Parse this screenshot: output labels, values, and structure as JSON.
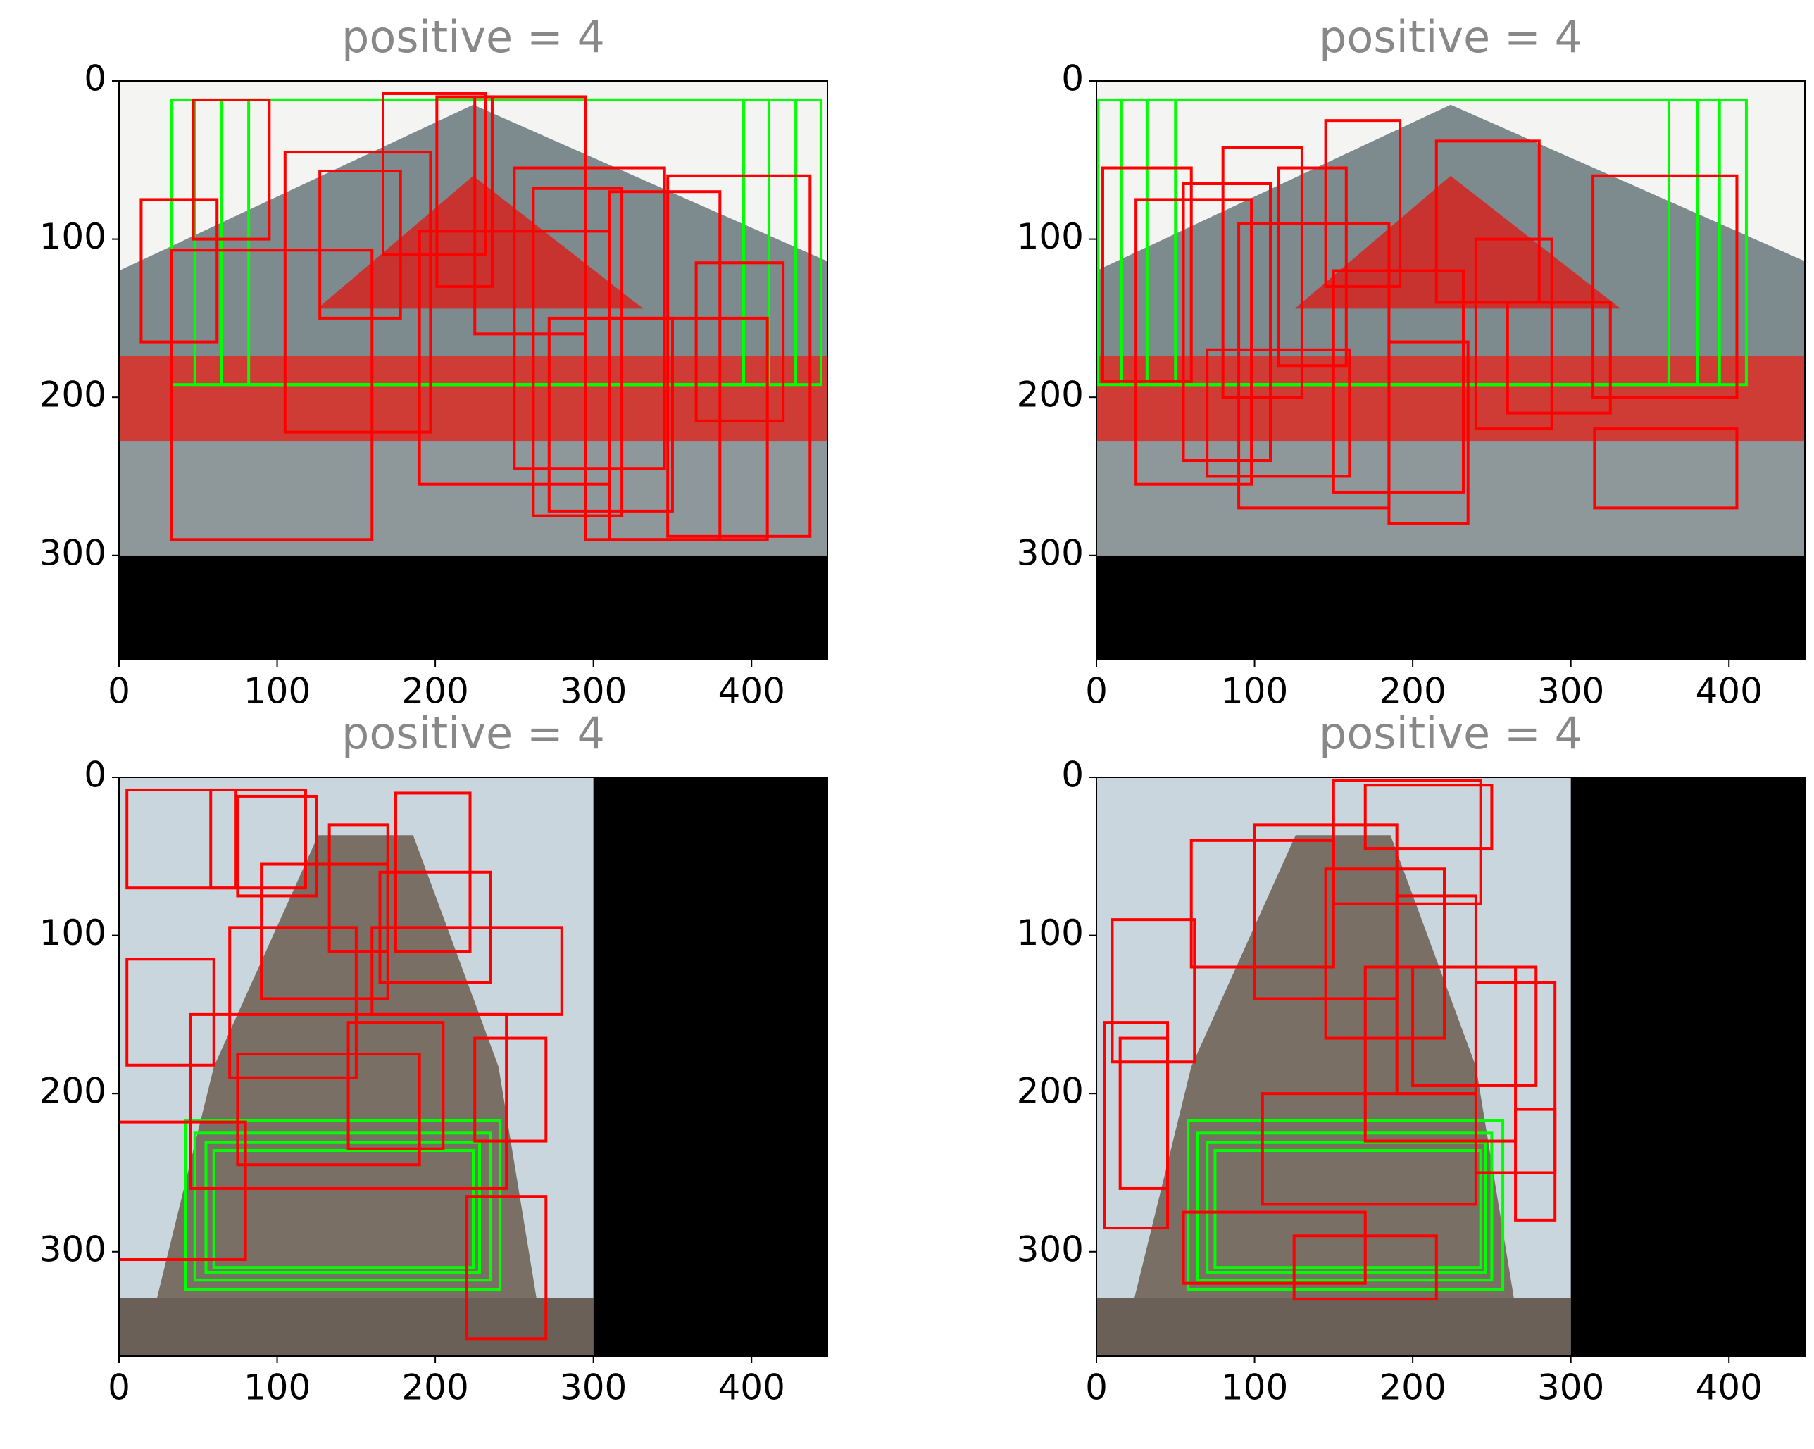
{
  "chart_data": [
    {
      "type": "image",
      "title": "positive = 4",
      "xlim": [
        0,
        448
      ],
      "ylim": [
        366,
        0
      ],
      "xticks": [
        0,
        100,
        200,
        300,
        400
      ],
      "yticks": [
        0,
        100,
        200,
        300
      ],
      "scene": "temple",
      "image_extent": [
        0,
        448,
        0,
        300
      ],
      "pad_color": "#000000",
      "series": [
        {
          "color": "#00ff00",
          "boxes": [
            [
              33,
              12,
              444,
              192
            ],
            [
              48,
              12,
              428,
              192
            ],
            [
              65,
              12,
              411,
              192
            ],
            [
              82,
              12,
              395,
              192
            ]
          ]
        },
        {
          "color": "#ff0000",
          "boxes": [
            [
              14,
              75,
              62,
              165
            ],
            [
              47,
              12,
              95,
              100
            ],
            [
              33,
              107,
              160,
              290
            ],
            [
              105,
              45,
              197,
              222
            ],
            [
              127,
              57,
              178,
              150
            ],
            [
              167,
              8,
              232,
              110
            ],
            [
              201,
              10,
              236,
              130
            ],
            [
              225,
              10,
              295,
              160
            ],
            [
              250,
              55,
              345,
              245
            ],
            [
              262,
              68,
              318,
              275
            ],
            [
              190,
              95,
              310,
              255
            ],
            [
              310,
              70,
              380,
              290
            ],
            [
              347,
              60,
              437,
              288
            ],
            [
              365,
              115,
              420,
              215
            ],
            [
              272,
              150,
              350,
              272
            ],
            [
              295,
              150,
              410,
              290
            ]
          ]
        }
      ]
    },
    {
      "type": "image",
      "title": "positive = 4",
      "xlim": [
        0,
        448
      ],
      "ylim": [
        366,
        0
      ],
      "xticks": [
        0,
        100,
        200,
        300,
        400
      ],
      "yticks": [
        0,
        100,
        200,
        300
      ],
      "scene": "temple",
      "image_extent": [
        0,
        448,
        0,
        300
      ],
      "pad_color": "#000000",
      "series": [
        {
          "color": "#00ff00",
          "boxes": [
            [
              1,
              12,
              411,
              192
            ],
            [
              16,
              12,
              394,
              192
            ],
            [
              32,
              12,
              380,
              192
            ],
            [
              50,
              12,
              362,
              192
            ]
          ]
        },
        {
          "color": "#ff0000",
          "boxes": [
            [
              4,
              55,
              60,
              190
            ],
            [
              25,
              75,
              98,
              255
            ],
            [
              55,
              65,
              110,
              240
            ],
            [
              80,
              42,
              130,
              200
            ],
            [
              90,
              90,
              185,
              270
            ],
            [
              115,
              55,
              158,
              180
            ],
            [
              145,
              25,
              192,
              130
            ],
            [
              150,
              120,
              232,
              260
            ],
            [
              185,
              165,
              235,
              280
            ],
            [
              215,
              38,
              280,
              140
            ],
            [
              240,
              100,
              288,
              220
            ],
            [
              260,
              140,
              325,
              210
            ],
            [
              314,
              60,
              405,
              200
            ],
            [
              315,
              220,
              405,
              270
            ],
            [
              70,
              170,
              160,
              250
            ]
          ]
        }
      ]
    },
    {
      "type": "image",
      "title": "positive = 4",
      "xlim": [
        0,
        448
      ],
      "ylim": [
        366,
        0
      ],
      "xticks": [
        0,
        100,
        200,
        300,
        400
      ],
      "yticks": [
        0,
        100,
        200,
        300
      ],
      "scene": "pagoda",
      "image_extent": [
        0,
        300,
        0,
        366
      ],
      "pad_color": "#000000",
      "series": [
        {
          "color": "#00ff00",
          "boxes": [
            [
              42,
              217,
              241,
              324
            ],
            [
              48,
              225,
              235,
              318
            ],
            [
              55,
              231,
              228,
              313
            ],
            [
              60,
              236,
              224,
              310
            ]
          ]
        },
        {
          "color": "#ff0000",
          "boxes": [
            [
              5,
              8,
              74,
              70
            ],
            [
              58,
              8,
              118,
              70
            ],
            [
              75,
              12,
              125,
              75
            ],
            [
              133,
              30,
              170,
              110
            ],
            [
              175,
              10,
              222,
              110
            ],
            [
              90,
              55,
              170,
              140
            ],
            [
              165,
              60,
              235,
              130
            ],
            [
              5,
              115,
              60,
              182
            ],
            [
              70,
              95,
              150,
              190
            ],
            [
              160,
              95,
              280,
              150
            ],
            [
              45,
              150,
              245,
              260
            ],
            [
              145,
              155,
              205,
              235
            ],
            [
              75,
              175,
              190,
              245
            ],
            [
              225,
              165,
              270,
              230
            ],
            [
              220,
              265,
              270,
              355
            ],
            [
              0,
              218,
              80,
              305
            ]
          ]
        }
      ]
    },
    {
      "type": "image",
      "title": "positive = 4",
      "xlim": [
        0,
        448
      ],
      "ylim": [
        366,
        0
      ],
      "xticks": [
        0,
        100,
        200,
        300,
        400
      ],
      "yticks": [
        0,
        100,
        200,
        300
      ],
      "scene": "pagoda",
      "image_extent": [
        0,
        300,
        0,
        366
      ],
      "pad_color": "#000000",
      "series": [
        {
          "color": "#00ff00",
          "boxes": [
            [
              58,
              217,
              257,
              324
            ],
            [
              64,
              225,
              250,
              318
            ],
            [
              70,
              231,
              246,
              313
            ],
            [
              75,
              236,
              243,
              310
            ]
          ]
        },
        {
          "color": "#ff0000",
          "boxes": [
            [
              10,
              90,
              62,
              180
            ],
            [
              5,
              155,
              45,
              285
            ],
            [
              15,
              165,
              45,
              260
            ],
            [
              55,
              275,
              170,
              320
            ],
            [
              60,
              40,
              150,
              120
            ],
            [
              100,
              30,
              190,
              140
            ],
            [
              150,
              2,
              243,
              80
            ],
            [
              170,
              5,
              250,
              45
            ],
            [
              145,
              58,
              220,
              165
            ],
            [
              190,
              75,
              240,
              200
            ],
            [
              200,
              120,
              278,
              195
            ],
            [
              240,
              130,
              290,
              250
            ],
            [
              265,
              210,
              290,
              280
            ],
            [
              125,
              290,
              215,
              330
            ],
            [
              170,
              120,
              265,
              230
            ],
            [
              105,
              200,
              240,
              270
            ]
          ]
        }
      ]
    }
  ]
}
